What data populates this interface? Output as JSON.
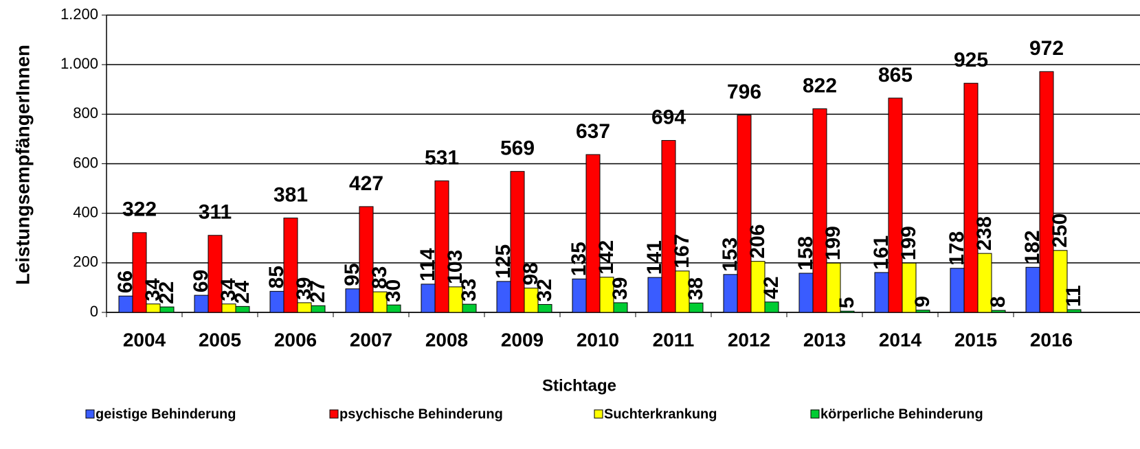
{
  "chart_data": {
    "type": "bar",
    "x_label": "Stichtage",
    "y_label": "LeistungsempfängerInnen",
    "categories": [
      "2004",
      "2005",
      "2006",
      "2007",
      "2008",
      "2009",
      "2010",
      "2011",
      "2012",
      "2013",
      "2014",
      "2015",
      "2016"
    ],
    "series": [
      {
        "name": "geistige Behinderung",
        "color": "#3a5cff",
        "values": [
          66,
          69,
          85,
          95,
          114,
          125,
          135,
          141,
          153,
          158,
          161,
          178,
          182
        ]
      },
      {
        "name": "psychische Behinderung",
        "color": "#ff0000",
        "values": [
          322,
          311,
          381,
          427,
          531,
          569,
          637,
          694,
          796,
          822,
          865,
          925,
          972
        ]
      },
      {
        "name": "Suchterkrankung",
        "color": "#ffff00",
        "values": [
          34,
          34,
          39,
          83,
          103,
          98,
          142,
          167,
          206,
          199,
          199,
          238,
          250
        ]
      },
      {
        "name": "körperliche Behinderung",
        "color": "#00cc33",
        "values": [
          22,
          24,
          27,
          30,
          33,
          32,
          39,
          38,
          42,
          5,
          9,
          8,
          11
        ]
      }
    ],
    "ylim": [
      0,
      1200
    ],
    "yticks": [
      0,
      200,
      400,
      600,
      800,
      {
        "value": 1000,
        "label": "1.000"
      },
      {
        "value": 1200,
        "label": "1.200"
      }
    ],
    "grid": true
  }
}
